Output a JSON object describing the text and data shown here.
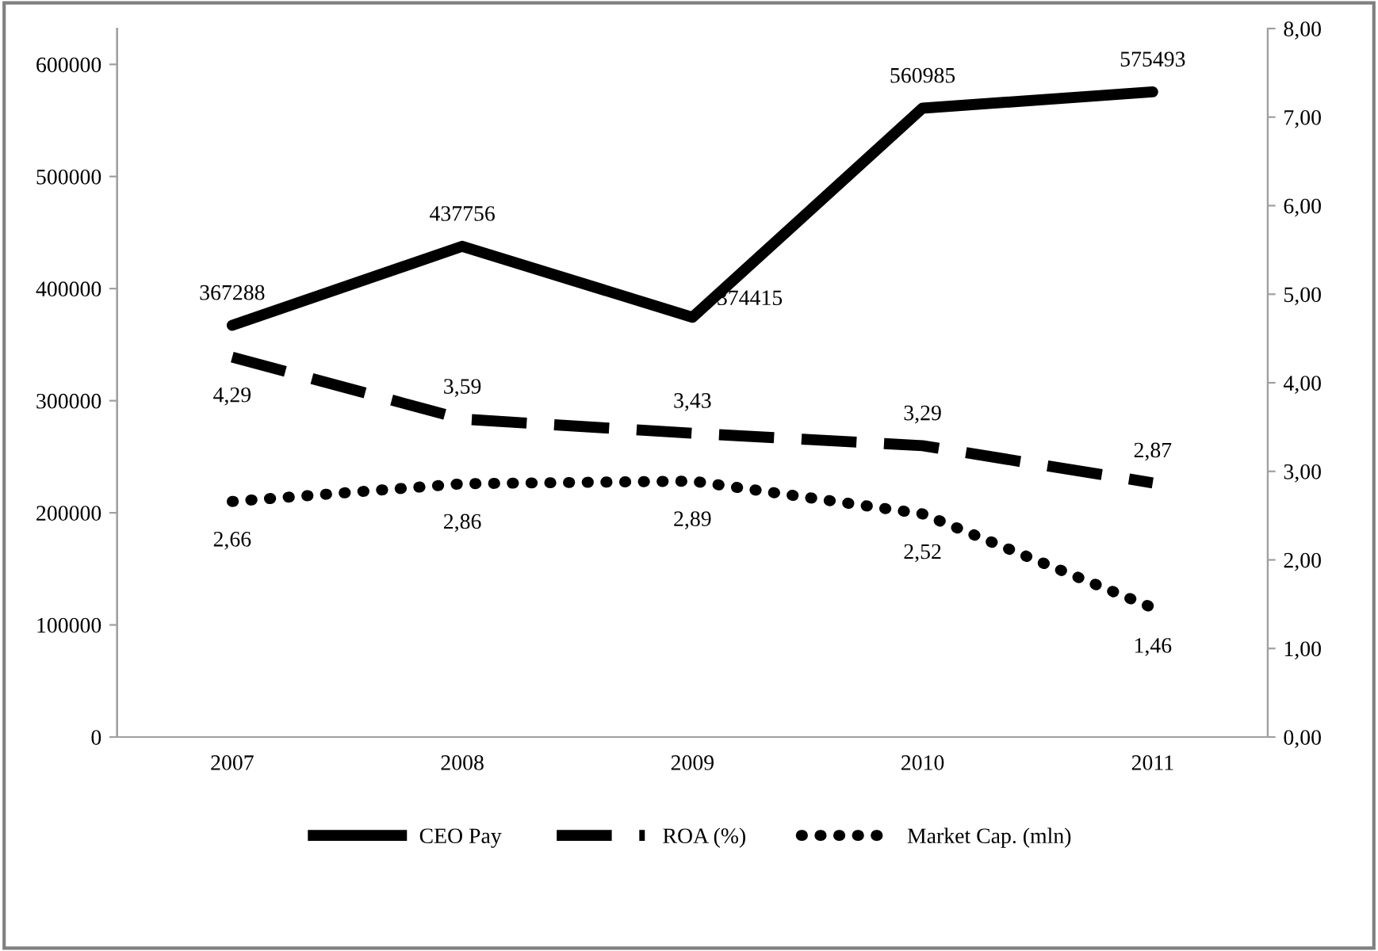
{
  "chart_data": {
    "type": "line",
    "categories": [
      "2007",
      "2008",
      "2009",
      "2010",
      "2011"
    ],
    "series": [
      {
        "name": "CEO Pay",
        "color": "#000000",
        "line_style": "solid",
        "values": [
          367288,
          437756,
          374415,
          560985,
          575493
        ],
        "value_labels": [
          "367288",
          "437756",
          "374415",
          "560985",
          "575493"
        ]
      },
      {
        "name": "ROA (%)",
        "color": "#000000",
        "line_style": "dashed",
        "axis": "y2",
        "values": [
          4.29,
          3.59,
          3.43,
          3.29,
          2.87
        ],
        "value_labels": [
          "4,29",
          "3,59",
          "3,43",
          "3,29",
          "2,87"
        ]
      },
      {
        "name": "Market Cap. (mln)",
        "color": "#000000",
        "line_style": "dotted",
        "axis": "y2",
        "values": [
          2.66,
          2.86,
          2.89,
          2.52,
          1.46
        ],
        "value_labels": [
          "2,66",
          "2,86",
          "2,89",
          "2,52",
          "1,46"
        ]
      }
    ],
    "ylim": [
      0,
      632000
    ],
    "yticks": [
      0,
      100000,
      200000,
      300000,
      400000,
      500000,
      600000
    ],
    "y2lim": [
      0,
      8
    ],
    "y2ticks": [
      {
        "value": 0,
        "label": "0,00"
      },
      {
        "value": 1,
        "label": "1,00"
      },
      {
        "value": 2,
        "label": "2,00"
      },
      {
        "value": 3,
        "label": "3,00"
      },
      {
        "value": 4,
        "label": "4,00"
      },
      {
        "value": 5,
        "label": "5,00"
      },
      {
        "value": 6,
        "label": "6,00"
      },
      {
        "value": 7,
        "label": "7,00"
      },
      {
        "value": 8,
        "label": "8,00"
      }
    ],
    "grid": false,
    "legend": "bottom",
    "marker": "none"
  }
}
